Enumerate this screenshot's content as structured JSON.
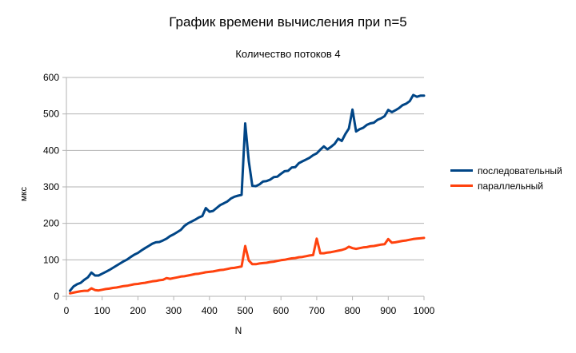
{
  "chart_data": {
    "type": "line",
    "title": "График времени вычисления при n=5",
    "subtitle": "Количество потоков 4",
    "xlabel": "N",
    "ylabel": "мкс",
    "xlim": [
      0,
      1000
    ],
    "ylim": [
      0,
      600
    ],
    "x_ticks": [
      0,
      100,
      200,
      300,
      400,
      500,
      600,
      700,
      800,
      900,
      1000
    ],
    "y_ticks": [
      0,
      100,
      200,
      300,
      400,
      500,
      600
    ],
    "grid": "horizontal",
    "legend_position": "right",
    "x": [
      10,
      20,
      30,
      40,
      50,
      60,
      70,
      80,
      90,
      100,
      110,
      120,
      130,
      140,
      150,
      160,
      170,
      180,
      190,
      200,
      210,
      220,
      230,
      240,
      250,
      260,
      270,
      280,
      290,
      300,
      310,
      320,
      330,
      340,
      350,
      360,
      370,
      380,
      390,
      400,
      410,
      420,
      430,
      440,
      450,
      460,
      470,
      480,
      490,
      500,
      510,
      520,
      530,
      540,
      550,
      560,
      570,
      580,
      590,
      600,
      610,
      620,
      630,
      640,
      650,
      660,
      670,
      680,
      690,
      700,
      710,
      720,
      730,
      740,
      750,
      760,
      770,
      780,
      790,
      800,
      810,
      820,
      830,
      840,
      850,
      860,
      870,
      880,
      890,
      900,
      910,
      920,
      930,
      940,
      950,
      960,
      970,
      980,
      990,
      1000
    ],
    "series": [
      {
        "name": "последовательный",
        "color": "#004586",
        "values": [
          15,
          27,
          33,
          37,
          45,
          52,
          65,
          57,
          57,
          62,
          67,
          72,
          78,
          84,
          90,
          96,
          101,
          108,
          114,
          119,
          126,
          132,
          138,
          144,
          148,
          149,
          153,
          158,
          165,
          170,
          176,
          182,
          193,
          200,
          205,
          210,
          216,
          220,
          242,
          232,
          234,
          242,
          250,
          255,
          260,
          268,
          273,
          276,
          278,
          474,
          370,
          303,
          302,
          307,
          315,
          316,
          320,
          327,
          328,
          336,
          343,
          344,
          353,
          354,
          365,
          370,
          375,
          380,
          387,
          392,
          402,
          411,
          403,
          410,
          418,
          432,
          426,
          445,
          460,
          512,
          452,
          458,
          462,
          470,
          474,
          476,
          484,
          488,
          494,
          511,
          505,
          510,
          516,
          524,
          528,
          535,
          552,
          547,
          550,
          550
        ]
      },
      {
        "name": "параллельный",
        "color": "#ff420e",
        "values": [
          8,
          10,
          12,
          14,
          15,
          15,
          22,
          17,
          16,
          18,
          20,
          21,
          23,
          24,
          26,
          28,
          29,
          31,
          33,
          34,
          36,
          37,
          39,
          41,
          42,
          44,
          45,
          50,
          48,
          50,
          52,
          54,
          55,
          57,
          59,
          61,
          62,
          64,
          66,
          67,
          68,
          70,
          72,
          73,
          75,
          77,
          78,
          80,
          82,
          138,
          98,
          88,
          88,
          90,
          91,
          92,
          94,
          95,
          97,
          99,
          100,
          102,
          104,
          105,
          107,
          108,
          110,
          112,
          113,
          158,
          118,
          118,
          120,
          121,
          123,
          125,
          127,
          130,
          136,
          132,
          130,
          132,
          134,
          135,
          137,
          138,
          140,
          142,
          143,
          157,
          147,
          148,
          150,
          152,
          153,
          155,
          157,
          158,
          159,
          160
        ]
      }
    ]
  }
}
